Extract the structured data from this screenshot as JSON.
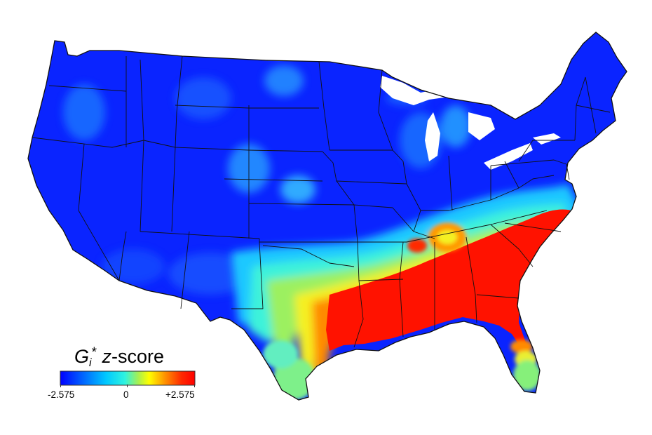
{
  "map": {
    "region": "Contiguous United States",
    "choropleth": "county-level hot spot z-scores",
    "colors": {
      "low": "#0a1aff",
      "low_mid": "#0b4bff",
      "mid_blue": "#1e90ff",
      "cyan": "#1fd0ff",
      "aqua": "#3ff2d6",
      "green": "#8ff070",
      "yellow": "#f2f21e",
      "orange": "#ff8a00",
      "high": "#ff1200",
      "state_border": "#111111"
    }
  },
  "legend": {
    "title_symbol": "G",
    "title_sub": "i",
    "title_sup": "*",
    "title_var": "z",
    "title_rest": "-score",
    "min_label": "-2.575",
    "mid_label": "0",
    "max_label": "+2.575",
    "scale": {
      "min": -2.575,
      "mid": 0,
      "max": 2.575
    },
    "colors": [
      "#0000ff",
      "#0060ff",
      "#00c8ff",
      "#2ff3e0",
      "#a8f050",
      "#ffff00",
      "#ff9000",
      "#ff2a00",
      "#ff0000"
    ]
  }
}
